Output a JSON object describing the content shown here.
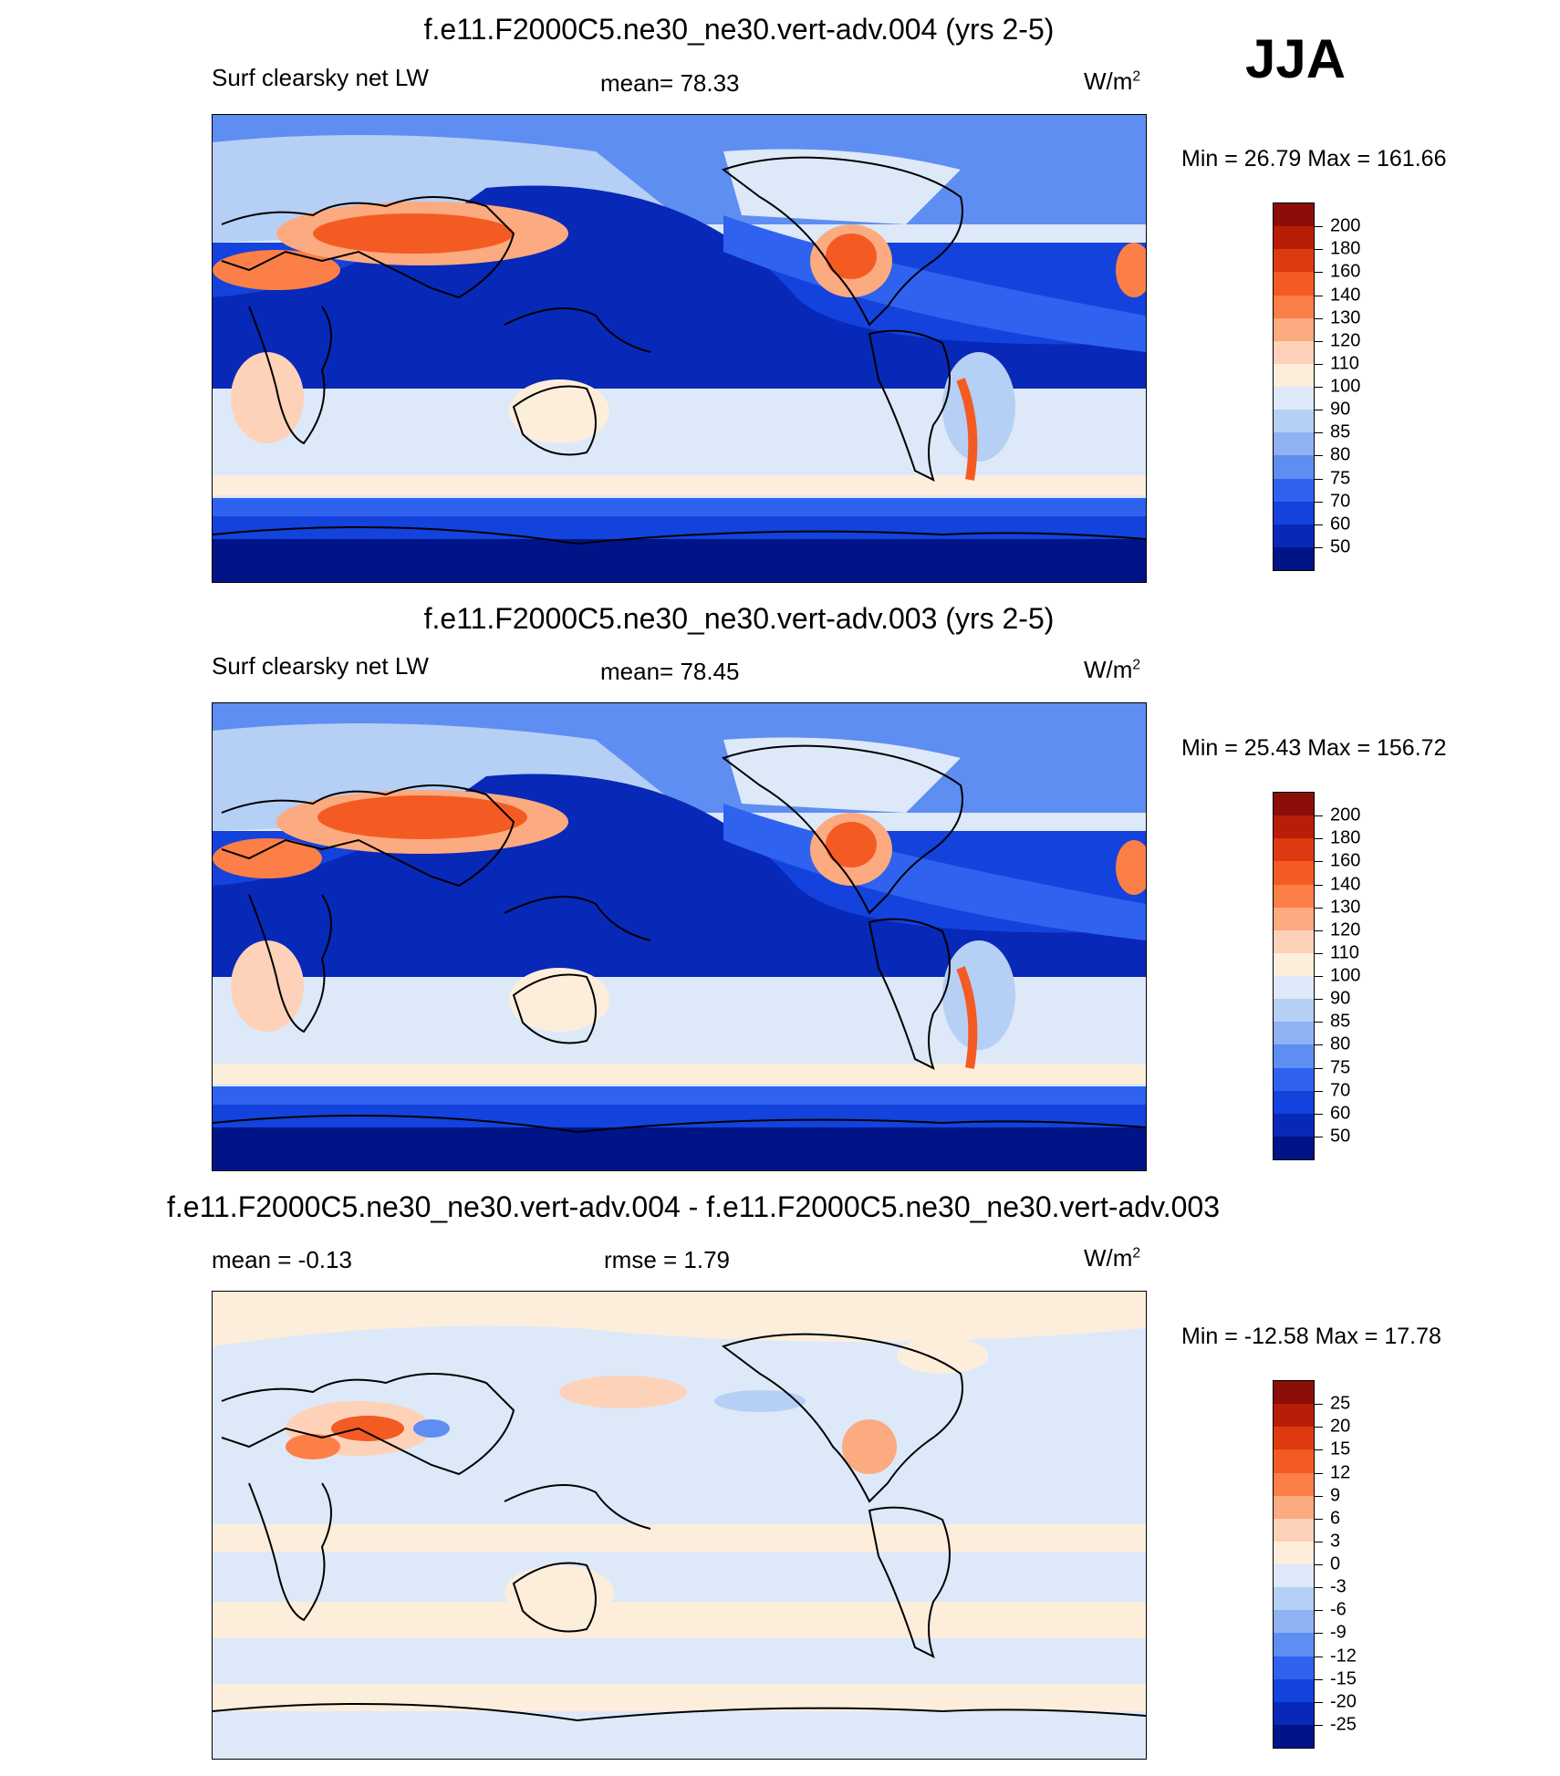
{
  "season": "JJA",
  "units_base": "W/m",
  "units_exp": "2",
  "panels": [
    {
      "title": "f.e11.F2000C5.ne30_ne30.vert-adv.004 (yrs 2-5)",
      "variable": "Surf clearsky net LW",
      "stat": "mean=  78.33",
      "minmax": "Min =  26.79 Max = 161.66"
    },
    {
      "title": "f.e11.F2000C5.ne30_ne30.vert-adv.003 (yrs 2-5)",
      "variable": "Surf clearsky net LW",
      "stat": "mean=  78.45",
      "minmax": "Min =  25.43 Max = 156.72"
    },
    {
      "title": "f.e11.F2000C5.ne30_ne30.vert-adv.004 - f.e11.F2000C5.ne30_ne30.vert-adv.003",
      "stat_left": "mean =  -0.13",
      "stat": "rmse =   1.79",
      "minmax": "Min = -12.58 Max =  17.78"
    }
  ],
  "colorbars": {
    "abs": {
      "labels": [
        "200",
        "180",
        "160",
        "140",
        "130",
        "120",
        "110",
        "100",
        "90",
        "85",
        "80",
        "75",
        "70",
        "60",
        "50"
      ],
      "colors": [
        "#8b0e08",
        "#b81d08",
        "#dd3a10",
        "#f45b22",
        "#fc7f48",
        "#fcaa80",
        "#fdd2b8",
        "#fdeedc",
        "#dde9f8",
        "#b6cff5",
        "#8fb2f5",
        "#5f8ef2",
        "#2f62ee",
        "#1342dc",
        "#0828b8",
        "#001488"
      ]
    },
    "diff": {
      "labels": [
        "25",
        "20",
        "15",
        "12",
        "9",
        "6",
        "3",
        "0",
        "-3",
        "-6",
        "-9",
        "-12",
        "-15",
        "-20",
        "-25"
      ],
      "colors": [
        "#8b0e08",
        "#b81d08",
        "#dd3a10",
        "#f45b22",
        "#fc7f48",
        "#fcaa80",
        "#fdd2b8",
        "#fdeedc",
        "#dde9f8",
        "#b6cff5",
        "#8fb2f5",
        "#5f8ef2",
        "#2f62ee",
        "#1342dc",
        "#0828b8",
        "#001488"
      ]
    }
  }
}
